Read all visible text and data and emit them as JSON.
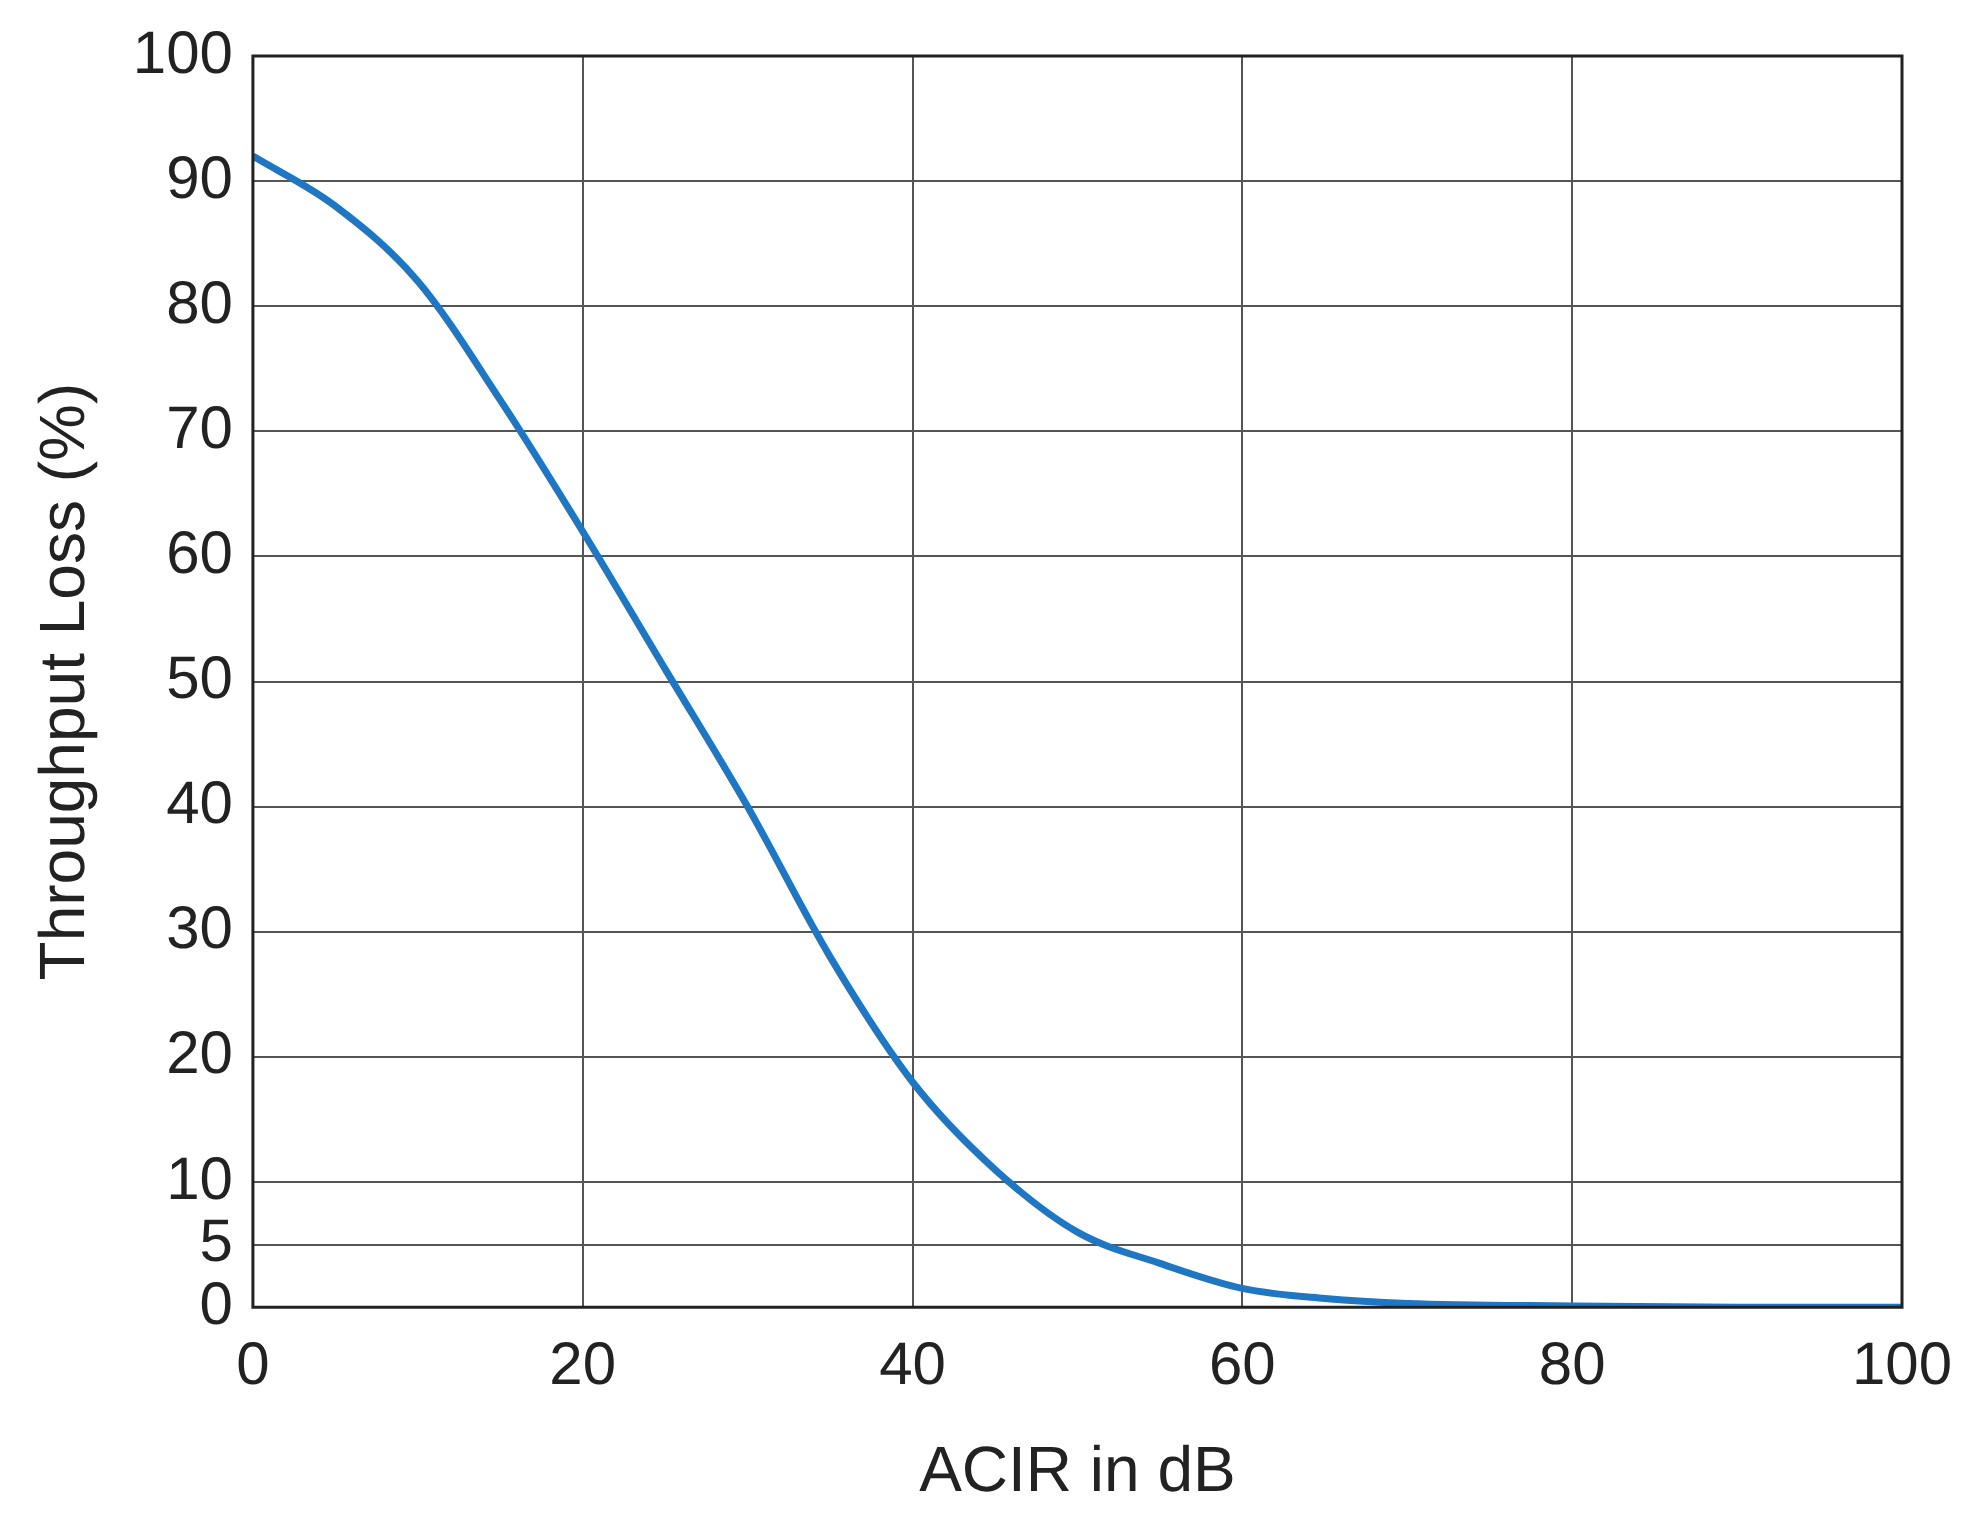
{
  "chart_data": {
    "type": "line",
    "xlabel": "ACIR in dB",
    "ylabel": "Throughput Loss (%)",
    "x": [
      0,
      5,
      10,
      15,
      20,
      25,
      30,
      35,
      40,
      45,
      50,
      55,
      60,
      65,
      70,
      80,
      90,
      100
    ],
    "series": [
      {
        "color": "#1f77c4",
        "values": [
          92,
          88,
          82,
          72.5,
          62,
          51,
          40,
          28,
          18,
          11,
          6,
          3.5,
          1.5,
          0.7,
          0.3,
          0.1,
          0,
          0
        ]
      }
    ],
    "xlim": [
      0,
      100
    ],
    "xticks": [
      0,
      20,
      40,
      60,
      80,
      100
    ],
    "ylim": [
      0,
      100
    ],
    "yticks": [
      0,
      5,
      10,
      20,
      30,
      40,
      50,
      60,
      70,
      80,
      90,
      100
    ],
    "grid": true,
    "legend": false,
    "marker": "none",
    "line_style": "solid"
  }
}
